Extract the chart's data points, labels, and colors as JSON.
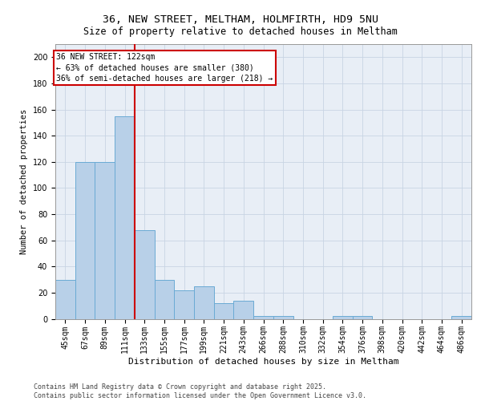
{
  "title_line1": "36, NEW STREET, MELTHAM, HOLMFIRTH, HD9 5NU",
  "title_line2": "Size of property relative to detached houses in Meltham",
  "xlabel": "Distribution of detached houses by size in Meltham",
  "ylabel": "Number of detached properties",
  "categories": [
    "45sqm",
    "67sqm",
    "89sqm",
    "111sqm",
    "133sqm",
    "155sqm",
    "177sqm",
    "199sqm",
    "221sqm",
    "243sqm",
    "266sqm",
    "288sqm",
    "310sqm",
    "332sqm",
    "354sqm",
    "376sqm",
    "398sqm",
    "420sqm",
    "442sqm",
    "464sqm",
    "486sqm"
  ],
  "values": [
    30,
    120,
    120,
    155,
    68,
    30,
    22,
    25,
    12,
    14,
    2,
    2,
    0,
    0,
    2,
    2,
    0,
    0,
    0,
    0,
    2
  ],
  "bar_color": "#b8d0e8",
  "bar_edge_color": "#6aaad4",
  "grid_color": "#c8d4e4",
  "background_color": "#e8eef6",
  "vline_color": "#cc0000",
  "vline_pos": 3.5,
  "annotation_text": "36 NEW STREET: 122sqm\n← 63% of detached houses are smaller (380)\n36% of semi-detached houses are larger (218) →",
  "annotation_box_facecolor": "#ffffff",
  "annotation_box_edgecolor": "#cc0000",
  "footer_text": "Contains HM Land Registry data © Crown copyright and database right 2025.\nContains public sector information licensed under the Open Government Licence v3.0.",
  "ylim": [
    0,
    210
  ],
  "yticks": [
    0,
    20,
    40,
    60,
    80,
    100,
    120,
    140,
    160,
    180,
    200
  ],
  "title_fontsize": 9.5,
  "subtitle_fontsize": 8.5,
  "tick_fontsize": 7,
  "ylabel_fontsize": 7.5,
  "xlabel_fontsize": 8,
  "footer_fontsize": 6,
  "annotation_fontsize": 7
}
